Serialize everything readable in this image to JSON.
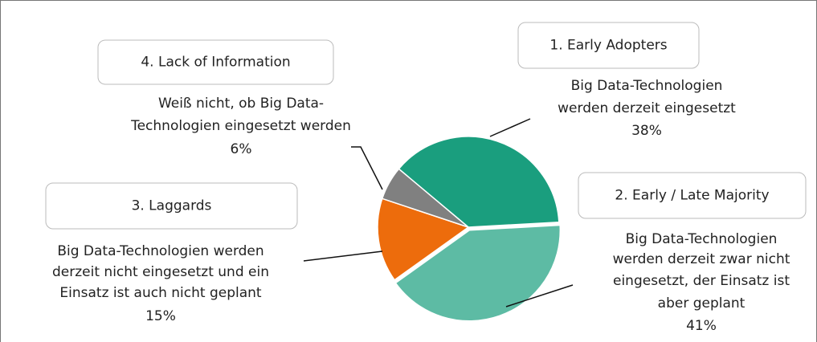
{
  "chart_data": {
    "type": "pie",
    "categories": [
      "1. Early Adopters",
      "2. Early / Late Majority",
      "3. Laggards",
      "4. Lack of Information"
    ],
    "descriptions": [
      [
        "Big Data-Technologien",
        "werden derzeit eingesetzt"
      ],
      [
        "Big Data-Technologien",
        "werden derzeit zwar nicht",
        "eingesetzt, der Einsatz ist",
        "aber geplant"
      ],
      [
        "Big Data-Technologien werden",
        "derzeit nicht eingesetzt und ein",
        "Einsatz ist auch nicht geplant"
      ],
      [
        "Weiß nicht, ob Big Data-",
        "Technologien eingesetzt werden"
      ]
    ],
    "values": [
      38,
      41,
      15,
      6
    ],
    "value_labels": [
      "38%",
      "41%",
      "15%",
      "6%"
    ],
    "colors": [
      "#1a9e7e",
      "#5dbba4",
      "#ed6c0c",
      "#808080"
    ]
  }
}
